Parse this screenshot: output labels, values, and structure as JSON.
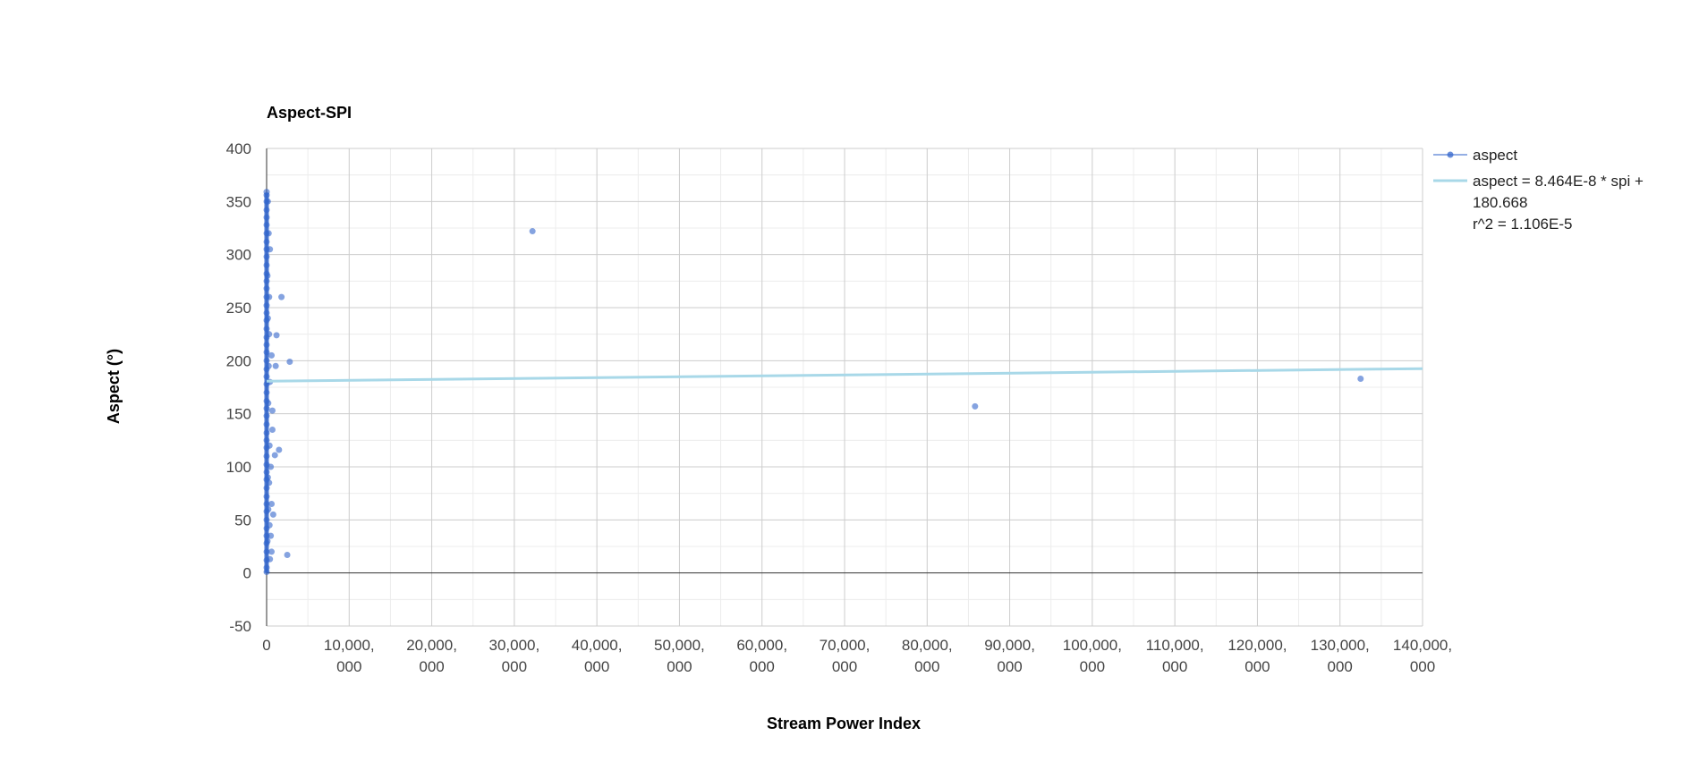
{
  "chart_data": {
    "type": "scatter",
    "title": "Aspect-SPI",
    "xlabel": "Stream Power Index",
    "ylabel": "Aspect (°)",
    "xlim": [
      0,
      140000000
    ],
    "ylim": [
      -50,
      400
    ],
    "x_ticks": [
      {
        "value": 0,
        "lines": [
          "0"
        ]
      },
      {
        "value": 10000000,
        "lines": [
          "10,000,",
          "000"
        ]
      },
      {
        "value": 20000000,
        "lines": [
          "20,000,",
          "000"
        ]
      },
      {
        "value": 30000000,
        "lines": [
          "30,000,",
          "000"
        ]
      },
      {
        "value": 40000000,
        "lines": [
          "40,000,",
          "000"
        ]
      },
      {
        "value": 50000000,
        "lines": [
          "50,000,",
          "000"
        ]
      },
      {
        "value": 60000000,
        "lines": [
          "60,000,",
          "000"
        ]
      },
      {
        "value": 70000000,
        "lines": [
          "70,000,",
          "000"
        ]
      },
      {
        "value": 80000000,
        "lines": [
          "80,000,",
          "000"
        ]
      },
      {
        "value": 90000000,
        "lines": [
          "90,000,",
          "000"
        ]
      },
      {
        "value": 100000000,
        "lines": [
          "100,000,",
          "000"
        ]
      },
      {
        "value": 110000000,
        "lines": [
          "110,000,",
          "000"
        ]
      },
      {
        "value": 120000000,
        "lines": [
          "120,000,",
          "000"
        ]
      },
      {
        "value": 130000000,
        "lines": [
          "130,000,",
          "000"
        ]
      },
      {
        "value": 140000000,
        "lines": [
          "140,000,",
          "000"
        ]
      }
    ],
    "y_ticks": [
      {
        "value": -50,
        "label": "-50"
      },
      {
        "value": 0,
        "label": "0"
      },
      {
        "value": 50,
        "label": "50"
      },
      {
        "value": 100,
        "label": "100"
      },
      {
        "value": 150,
        "label": "150"
      },
      {
        "value": 200,
        "label": "200"
      },
      {
        "value": 250,
        "label": "250"
      },
      {
        "value": 300,
        "label": "300"
      },
      {
        "value": 350,
        "label": "350"
      },
      {
        "value": 400,
        "label": "400"
      }
    ],
    "grid": true,
    "legend_position": "right",
    "series": [
      {
        "name": "aspect",
        "color": "#3366cc",
        "points": [
          [
            0,
            5
          ],
          [
            0,
            12
          ],
          [
            0,
            20
          ],
          [
            0,
            28
          ],
          [
            0,
            35
          ],
          [
            0,
            42
          ],
          [
            0,
            50
          ],
          [
            0,
            58
          ],
          [
            0,
            65
          ],
          [
            0,
            72
          ],
          [
            0,
            80
          ],
          [
            0,
            88
          ],
          [
            0,
            95
          ],
          [
            0,
            102
          ],
          [
            0,
            110
          ],
          [
            0,
            118
          ],
          [
            0,
            125
          ],
          [
            0,
            132
          ],
          [
            0,
            140
          ],
          [
            0,
            148
          ],
          [
            0,
            155
          ],
          [
            0,
            162
          ],
          [
            0,
            170
          ],
          [
            0,
            178
          ],
          [
            0,
            185
          ],
          [
            0,
            192
          ],
          [
            0,
            200
          ],
          [
            0,
            208
          ],
          [
            0,
            215
          ],
          [
            0,
            222
          ],
          [
            0,
            230
          ],
          [
            0,
            238
          ],
          [
            0,
            245
          ],
          [
            0,
            252
          ],
          [
            0,
            260
          ],
          [
            0,
            268
          ],
          [
            0,
            275
          ],
          [
            0,
            282
          ],
          [
            0,
            290
          ],
          [
            0,
            298
          ],
          [
            0,
            305
          ],
          [
            0,
            312
          ],
          [
            0,
            320
          ],
          [
            0,
            328
          ],
          [
            0,
            335
          ],
          [
            0,
            342
          ],
          [
            0,
            350
          ],
          [
            0,
            356
          ],
          [
            0,
            1
          ],
          [
            0,
            359
          ],
          [
            100000,
            30
          ],
          [
            150000,
            90
          ],
          [
            200000,
            160
          ],
          [
            150000,
            240
          ],
          [
            250000,
            320
          ],
          [
            100000,
            280
          ],
          [
            200000,
            60
          ],
          [
            150000,
            350
          ],
          [
            400000,
            13
          ],
          [
            350000,
            45
          ],
          [
            300000,
            85
          ],
          [
            350000,
            120
          ],
          [
            250000,
            195
          ],
          [
            300000,
            260
          ],
          [
            400000,
            305
          ],
          [
            300000,
            225
          ],
          [
            500000,
            35
          ],
          [
            400000,
            180
          ],
          [
            500000,
            100
          ],
          [
            600000,
            20
          ],
          [
            600000,
            65
          ],
          [
            600000,
            205
          ],
          [
            700000,
            135
          ],
          [
            700000,
            153
          ],
          [
            800000,
            55
          ],
          [
            1000000,
            111
          ],
          [
            1100000,
            195
          ],
          [
            1200000,
            224
          ],
          [
            1500000,
            116
          ],
          [
            1800000,
            260
          ],
          [
            2500000,
            17
          ],
          [
            2800000,
            199
          ],
          [
            32200000,
            322
          ],
          [
            85800000,
            157
          ],
          [
            132500000,
            183
          ]
        ]
      }
    ],
    "trendline": {
      "name": "aspect = 8.464E-8 * spi + 180.668",
      "r2_label": "r^2 = 1.106E-5",
      "legend_lines": [
        "aspect = 8.464E-8 * spi +",
        "180.668",
        "r^2 = 1.106E-5"
      ],
      "slope": 8.464e-08,
      "intercept": 180.668,
      "color": "#a8d8e8"
    }
  }
}
